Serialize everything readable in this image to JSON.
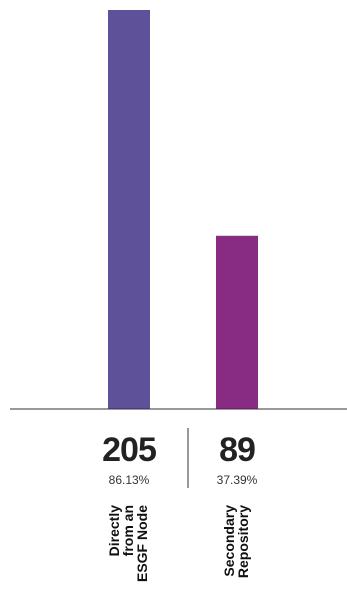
{
  "chart_data": {
    "type": "bar",
    "categories": [
      {
        "lines": [
          "Directly",
          "from an",
          "ESGF Node"
        ]
      },
      {
        "lines": [
          "Secondary",
          "Repository"
        ]
      }
    ],
    "values": [
      205,
      89
    ],
    "percent_labels": [
      "86.13%",
      "37.39%"
    ],
    "colors": [
      "#5e519a",
      "#872c82"
    ],
    "ylim": [
      0,
      205
    ],
    "grid": false,
    "legend": "none"
  }
}
